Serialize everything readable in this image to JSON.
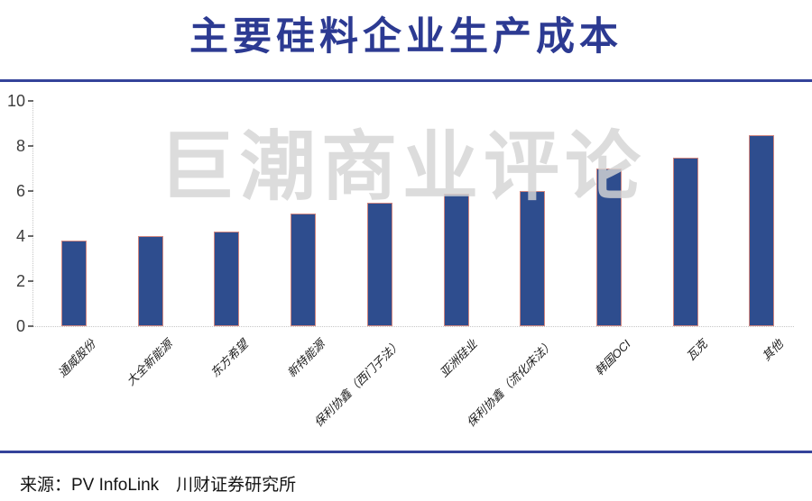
{
  "page": {
    "title": "主要硅料企业生产成本",
    "watermark": "巨潮商业评论",
    "source": "来源：PV InfoLink　川财证券研究所"
  },
  "chart_data": {
    "type": "bar",
    "title": "主要硅料企业生产成本",
    "categories": [
      "通威股份",
      "大全新能源",
      "东方希望",
      "新特能源",
      "保利协鑫（西门子法）",
      "亚洲硅业",
      "保利协鑫（流化床法）",
      "韩国OCI",
      "瓦克",
      "其他"
    ],
    "values": [
      3.8,
      4.0,
      4.2,
      5.0,
      5.5,
      5.9,
      6.0,
      7.0,
      7.5,
      8.5
    ],
    "xlabel": "",
    "ylabel": "",
    "ylim": [
      0,
      10
    ],
    "yticks": [
      0,
      2,
      4,
      6,
      8,
      10
    ],
    "grid": false,
    "legend": "none",
    "category_label_rotation_deg": -45
  },
  "colors": {
    "title_text": "#2c3a92",
    "divider": "#34439a",
    "bar_fill": "#2e4d8e",
    "bar_border": "#cf8680",
    "watermark": "#d4d4d4",
    "axis_line": "#c6c6c6",
    "tick_label": "#3d3d3d"
  }
}
